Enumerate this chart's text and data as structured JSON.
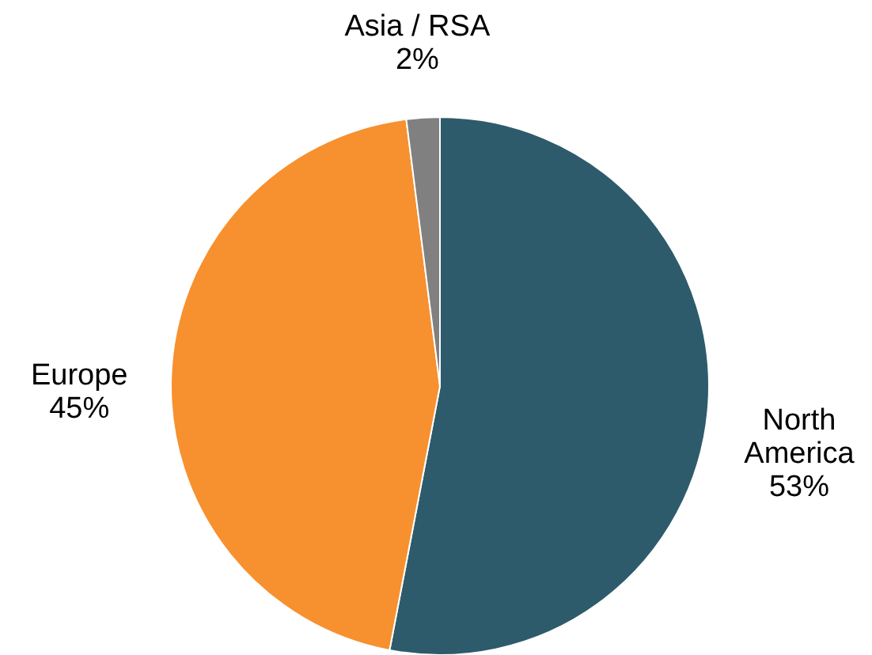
{
  "chart_data": {
    "type": "pie",
    "categories": [
      "North America",
      "Europe",
      "Asia / RSA"
    ],
    "values": [
      53,
      45,
      2
    ],
    "colors": [
      "#2d5b6b",
      "#f7902e",
      "#808080"
    ],
    "value_labels": [
      "53%",
      "45%",
      "2%"
    ]
  }
}
